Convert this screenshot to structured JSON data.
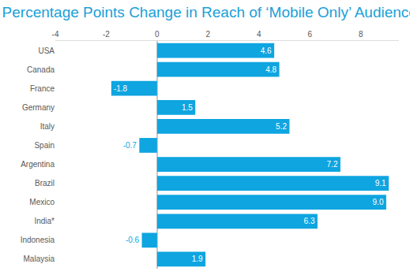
{
  "chart_data": {
    "type": "bar",
    "orientation": "horizontal",
    "title": "Percentage Points Change in Reach of ‘Mobile Only’ Audience",
    "categories": [
      "USA",
      "Canada",
      "France",
      "Germany",
      "Italy",
      "Spain",
      "Argentina",
      "Brazil",
      "Mexico",
      "India*",
      "Indonesia",
      "Malaysia"
    ],
    "values": [
      4.6,
      4.8,
      -1.8,
      1.5,
      5.2,
      -0.7,
      7.2,
      9.1,
      9.0,
      6.3,
      -0.6,
      1.9
    ],
    "value_labels": [
      "4.6",
      "4.8",
      "-1.8",
      "1.5",
      "5.2",
      "-0.7",
      "7.2",
      "9.1",
      "9.0",
      "6.3",
      "-0.6",
      "1.9"
    ],
    "color": "#0ea5e0",
    "xlim": [
      -4,
      9.5
    ],
    "xticks": [
      -4,
      -2,
      0,
      2,
      4,
      6,
      8
    ],
    "grid": false,
    "data_labels": true
  }
}
